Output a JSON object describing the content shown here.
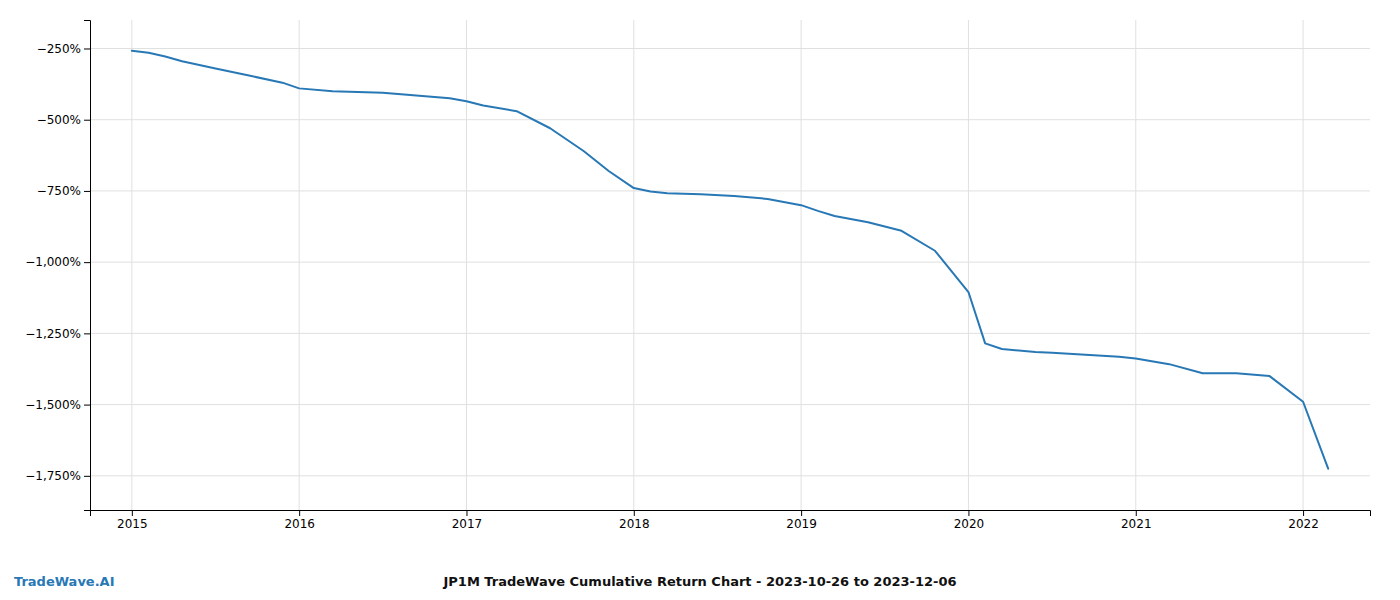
{
  "chart_data": {
    "type": "line",
    "title": "JP1M TradeWave Cumulative Return Chart - 2023-10-26 to 2023-12-06",
    "annotations": [
      "TradeWave.AI"
    ],
    "color": "#2878b5",
    "grid": true,
    "x": [
      2015.0,
      2015.1,
      2015.2,
      2015.3,
      2015.5,
      2015.7,
      2015.9,
      2016.0,
      2016.2,
      2016.5,
      2016.7,
      2016.9,
      2017.0,
      2017.1,
      2017.3,
      2017.5,
      2017.7,
      2017.85,
      2018.0,
      2018.1,
      2018.2,
      2018.4,
      2018.6,
      2018.8,
      2019.0,
      2019.1,
      2019.2,
      2019.4,
      2019.6,
      2019.8,
      2020.0,
      2020.1,
      2020.2,
      2020.4,
      2020.5,
      2020.7,
      2020.9,
      2021.0,
      2021.2,
      2021.4,
      2021.6,
      2021.8,
      2022.0,
      2022.15
    ],
    "values": [
      -258,
      -265,
      -278,
      -295,
      -320,
      -345,
      -370,
      -390,
      -400,
      -405,
      -415,
      -425,
      -435,
      -450,
      -470,
      -530,
      -610,
      -680,
      -740,
      -752,
      -758,
      -762,
      -768,
      -778,
      -800,
      -820,
      -838,
      -860,
      -890,
      -960,
      -1105,
      -1285,
      -1305,
      -1315,
      -1318,
      -1325,
      -1332,
      -1338,
      -1358,
      -1390,
      -1390,
      -1400,
      -1490,
      -1725
    ],
    "xlim": [
      2014.75,
      2022.4
    ],
    "xticks": [
      2015,
      2016,
      2017,
      2018,
      2019,
      2020,
      2021,
      2022
    ],
    "ylim": [
      -1870,
      -150
    ],
    "yticks": [
      {
        "value": -250,
        "label": "−250%"
      },
      {
        "value": -500,
        "label": "−500%"
      },
      {
        "value": -750,
        "label": "−750%"
      },
      {
        "value": -1000,
        "label": "−1,000%"
      },
      {
        "value": -1250,
        "label": "−1,250%"
      },
      {
        "value": -1500,
        "label": "−1,500%"
      },
      {
        "value": -1750,
        "label": "−1,750%"
      }
    ]
  }
}
